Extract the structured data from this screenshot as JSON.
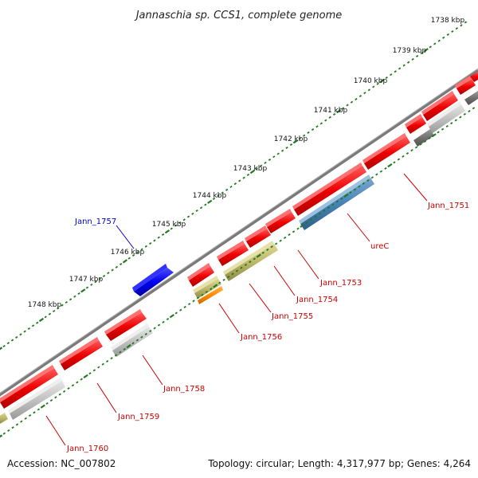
{
  "title": "Jannaschia sp. CCS1, complete genome",
  "footer": {
    "accession": "Accession: NC_007802",
    "summary": "Topology: circular; Length: 4,317,977 bp; Genes: 4,264"
  },
  "colors": {
    "backbone": "#7a7a7a",
    "ticks": "#1f7a1f",
    "forward_label": "#0000cc",
    "reverse_label": "#cc0000"
  },
  "ruler": {
    "ticks": [
      {
        "label": "1738 kbp",
        "kbp": 1738
      },
      {
        "label": "1739 kbp",
        "kbp": 1739
      },
      {
        "label": "1740 kbp",
        "kbp": 1740
      },
      {
        "label": "1741 kbp",
        "kbp": 1741
      },
      {
        "label": "1742 kbp",
        "kbp": 1742
      },
      {
        "label": "1743 kbp",
        "kbp": 1743
      },
      {
        "label": "1744 kbp",
        "kbp": 1744
      },
      {
        "label": "1745 kbp",
        "kbp": 1745
      },
      {
        "label": "1746 kbp",
        "kbp": 1746
      },
      {
        "label": "1747 kbp",
        "kbp": 1747
      },
      {
        "label": "1748 kbp",
        "kbp": 1748
      }
    ]
  },
  "genes": [
    {
      "label": "Jann_1757",
      "strand": "forward",
      "color": "#0000ee"
    },
    {
      "label": "Jann_1751",
      "strand": "reverse",
      "color": "#ee0000"
    },
    {
      "label": "ureC",
      "strand": "reverse",
      "color": "#4682b4"
    },
    {
      "label": "Jann_1753",
      "strand": "reverse",
      "color": "#ee0000"
    },
    {
      "label": "Jann_1754",
      "strand": "reverse",
      "color": "#bdb76b"
    },
    {
      "label": "Jann_1755",
      "strand": "reverse",
      "color": "#ee0000"
    },
    {
      "label": "Jann_1756",
      "strand": "reverse",
      "color": "#ff8c00"
    },
    {
      "label": "Jann_1758",
      "strand": "reverse",
      "color": "#c0c0c0"
    },
    {
      "label": "Jann_1759",
      "strand": "reverse",
      "color": "#ee0000"
    },
    {
      "label": "Jann_1760",
      "strand": "reverse",
      "color": "#c0c0c0"
    }
  ]
}
